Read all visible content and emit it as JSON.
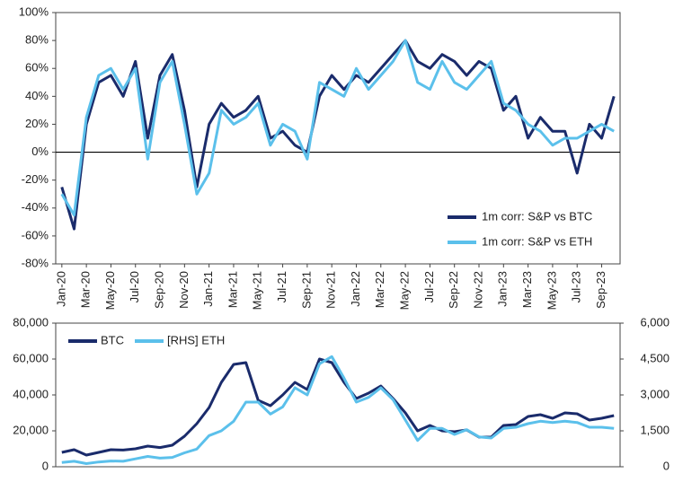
{
  "chart_data": [
    {
      "type": "line",
      "categories": [
        "Jan-20",
        null,
        "Mar-20",
        null,
        "May-20",
        null,
        "Jul-20",
        null,
        "Sep-20",
        null,
        "Nov-20",
        null,
        "Jan-21",
        null,
        "Mar-21",
        null,
        "May-21",
        null,
        "Jul-21",
        null,
        "Sep-21",
        null,
        "Nov-21",
        null,
        "Jan-22",
        null,
        "Mar-22",
        null,
        "May-22",
        null,
        "Jul-22",
        null,
        "Sep-22",
        null,
        "Nov-22",
        null,
        "Jan-23",
        null,
        "Mar-23",
        null,
        "May-23",
        null,
        "Jul-23",
        null,
        "Sep-23",
        null
      ],
      "series": [
        {
          "name": "1m corr: S&P vs BTC",
          "color": "#1a2b6b",
          "values": [
            -25,
            -55,
            20,
            50,
            55,
            40,
            65,
            10,
            55,
            70,
            30,
            -25,
            20,
            35,
            25,
            30,
            40,
            10,
            15,
            5,
            0,
            40,
            55,
            45,
            55,
            50,
            60,
            70,
            80,
            65,
            60,
            70,
            65,
            55,
            65,
            60,
            30,
            40,
            10,
            25,
            15,
            15,
            -15,
            20,
            10,
            40
          ]
        },
        {
          "name": "1m corr: S&P vs ETH",
          "color": "#5bc0eb",
          "values": [
            -30,
            -45,
            25,
            55,
            60,
            45,
            60,
            -5,
            50,
            65,
            20,
            -30,
            -15,
            30,
            20,
            25,
            35,
            5,
            20,
            15,
            -5,
            50,
            45,
            40,
            60,
            45,
            55,
            65,
            80,
            50,
            45,
            65,
            50,
            45,
            55,
            65,
            35,
            30,
            20,
            15,
            5,
            10,
            10,
            15,
            20,
            15
          ]
        }
      ],
      "ylim": [
        -80,
        100
      ],
      "yticks": [
        {
          "value": -80,
          "label": "-80%"
        },
        {
          "value": -60,
          "label": "-60%"
        },
        {
          "value": -40,
          "label": "-40%"
        },
        {
          "value": -20,
          "label": "-20%"
        },
        {
          "value": 0,
          "label": "0%"
        },
        {
          "value": 20,
          "label": "20%"
        },
        {
          "value": 40,
          "label": "40%"
        },
        {
          "value": 60,
          "label": "60%"
        },
        {
          "value": 80,
          "label": "80%"
        },
        {
          "value": 100,
          "label": "100%"
        }
      ],
      "legend": "lower right"
    },
    {
      "type": "line",
      "series": [
        {
          "name": "BTC",
          "color": "#1a2b6b",
          "values": [
            8000,
            9500,
            6500,
            8000,
            9500,
            9300,
            10000,
            11500,
            10700,
            12000,
            17000,
            24000,
            33000,
            47000,
            57000,
            58000,
            37000,
            34000,
            40000,
            47000,
            43000,
            60000,
            58000,
            47000,
            38000,
            41000,
            45000,
            38000,
            30000,
            20000,
            23000,
            20000,
            19500,
            20500,
            16500,
            16500,
            23000,
            23500,
            28000,
            29000,
            27000,
            30000,
            29500,
            26000,
            27000,
            28500
          ]
        },
        {
          "name": "[RHS] ETH",
          "color": "#5bc0eb",
          "axis": "y2",
          "values": [
            180,
            230,
            130,
            200,
            240,
            230,
            330,
            430,
            360,
            390,
            580,
            740,
            1300,
            1500,
            1900,
            2700,
            2700,
            2200,
            2500,
            3300,
            3000,
            4300,
            4600,
            3700,
            2700,
            2900,
            3300,
            2800,
            1950,
            1100,
            1600,
            1600,
            1350,
            1550,
            1250,
            1200,
            1600,
            1650,
            1800,
            1900,
            1850,
            1900,
            1850,
            1650,
            1650,
            1600
          ]
        }
      ],
      "ylim": [
        0,
        80000
      ],
      "yticks": [
        0,
        {
          "value": 20000,
          "label": "20,000"
        },
        {
          "value": 40000,
          "label": "40,000"
        },
        {
          "value": 60000,
          "label": "60,000"
        },
        {
          "value": 80000,
          "label": "80,000"
        }
      ],
      "y2lim": [
        0,
        6000
      ],
      "y2ticks": [
        0,
        {
          "value": 1500,
          "label": "1,500"
        },
        {
          "value": 3000,
          "label": "3,000"
        },
        {
          "value": 4500,
          "label": "4,500"
        },
        {
          "value": 6000,
          "label": "6,000"
        }
      ],
      "legend": "upper left"
    }
  ]
}
